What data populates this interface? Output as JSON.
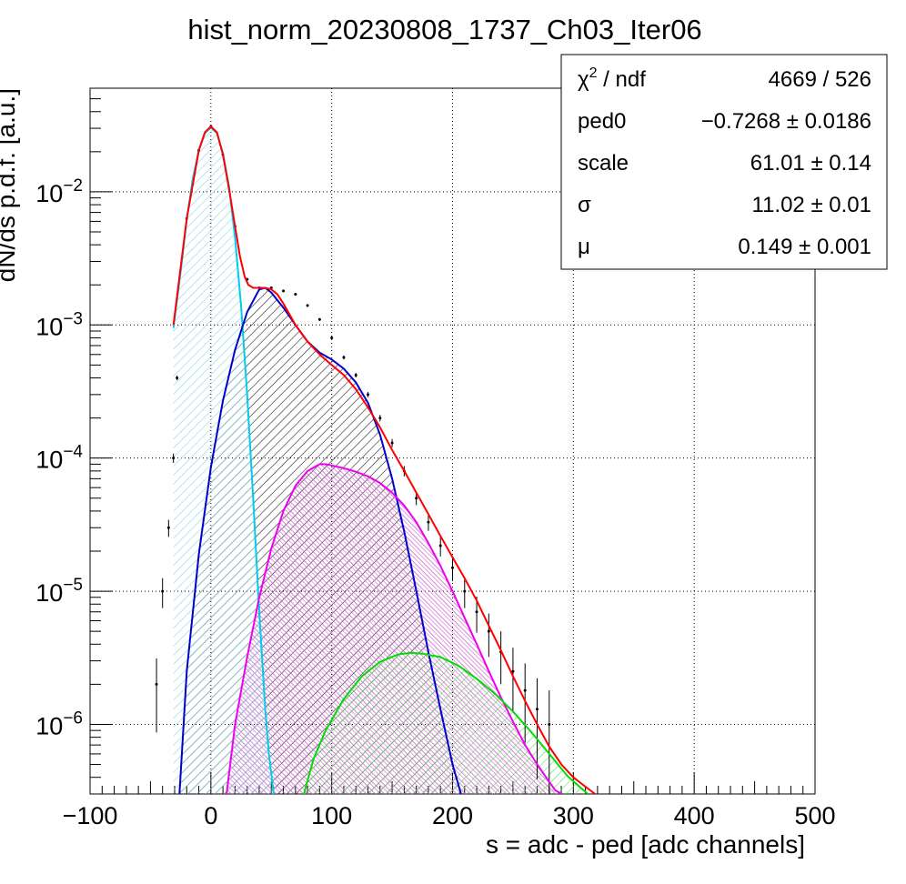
{
  "chart_data": {
    "type": "line",
    "title": "hist_norm_20230808_1737_Ch03_Iter06",
    "xlabel": "s = adc - ped [adc channels]",
    "ylabel": "dN/ds p.d.f. [a.u.]",
    "x_scale": "linear",
    "y_scale": "log",
    "xlim": [
      -100,
      500
    ],
    "ylim": [
      3e-07,
      0.06
    ],
    "grid": true,
    "x_ticks": [
      -100,
      0,
      100,
      200,
      300,
      400,
      500
    ],
    "x_tick_labels": [
      "−100",
      "0",
      "100",
      "200",
      "300",
      "400",
      "500"
    ],
    "y_ticks": [
      1e-06,
      1e-05,
      0.0001,
      0.001,
      0.01
    ],
    "y_tick_labels": [
      {
        "base": "10",
        "exp": "−6"
      },
      {
        "base": "10",
        "exp": "−5"
      },
      {
        "base": "10",
        "exp": "−4"
      },
      {
        "base": "10",
        "exp": "−3"
      },
      {
        "base": "10",
        "exp": "−2"
      }
    ],
    "series": [
      {
        "color": "#ff0000",
        "x": [
          -31,
          -20,
          -10,
          -5,
          0,
          5,
          10,
          15,
          20,
          24,
          28,
          31,
          35,
          40,
          45,
          50,
          55,
          60,
          70,
          80,
          90,
          100,
          110,
          120,
          130,
          140,
          150,
          160,
          170,
          180,
          190,
          200,
          210,
          220,
          230,
          240,
          250,
          260,
          270,
          280,
          290,
          300,
          310,
          318
        ],
        "y": [
          0.001,
          0.0063,
          0.0205,
          0.028,
          0.031,
          0.028,
          0.019,
          0.0105,
          0.0055,
          0.0033,
          0.0023,
          0.002,
          0.0019,
          0.0019,
          0.0019,
          0.00185,
          0.0017,
          0.00145,
          0.001,
          0.00075,
          0.0006,
          0.0005,
          0.00042,
          0.00033,
          0.00024,
          0.00017,
          0.000115,
          8e-05,
          5.5e-05,
          3.8e-05,
          2.6e-05,
          1.8e-05,
          1.25e-05,
          8.5e-06,
          5.5e-06,
          3.6e-06,
          2.3e-06,
          1.5e-06,
          1e-06,
          6.8e-07,
          5e-07,
          4e-07,
          3.4e-07,
          3e-07
        ]
      },
      {
        "color": "#00ccee",
        "fill": "#7fd8e8",
        "x": [
          -31,
          -25,
          -20,
          -15,
          -10,
          -5,
          0,
          5,
          10,
          15,
          20,
          25,
          30,
          35,
          40,
          45,
          48,
          52
        ],
        "y": [
          0.00095,
          0.0025,
          0.0062,
          0.0125,
          0.0205,
          0.0275,
          0.0305,
          0.0275,
          0.0195,
          0.011,
          0.0045,
          0.0014,
          0.0003,
          5e-05,
          7e-06,
          1.3e-06,
          6e-07,
          3e-07
        ]
      },
      {
        "color": "#0000cc",
        "fill": "#222222",
        "x": [
          -26,
          -20,
          -10,
          0,
          10,
          20,
          30,
          40,
          45,
          50,
          60,
          70,
          80,
          90,
          100,
          110,
          120,
          130,
          140,
          150,
          160,
          170,
          180,
          190,
          200,
          207
        ],
        "y": [
          3e-07,
          2.5e-06,
          1.9e-05,
          8.5e-05,
          0.00027,
          0.00065,
          0.00125,
          0.00185,
          0.0019,
          0.00175,
          0.00135,
          0.001,
          0.00075,
          0.00062,
          0.00055,
          0.00047,
          0.00037,
          0.00026,
          0.00015,
          7e-05,
          2.8e-05,
          1e-05,
          3.5e-06,
          1.3e-06,
          5e-07,
          3e-07
        ]
      },
      {
        "color": "#ee00ee",
        "fill": "#cc66cc",
        "x": [
          13,
          20,
          30,
          40,
          50,
          60,
          70,
          80,
          90,
          95,
          100,
          110,
          120,
          130,
          140,
          150,
          160,
          170,
          180,
          190,
          200,
          210,
          220,
          230,
          240,
          250,
          260,
          270,
          280,
          285,
          290
        ],
        "y": [
          3e-07,
          1e-06,
          3.2e-06,
          9e-06,
          2.1e-05,
          4e-05,
          6.2e-05,
          8e-05,
          9e-05,
          9e-05,
          8.8e-05,
          8.4e-05,
          7.9e-05,
          7.3e-05,
          6.5e-05,
          5.5e-05,
          4.4e-05,
          3.3e-05,
          2.3e-05,
          1.55e-05,
          1e-05,
          6.3e-06,
          4e-06,
          2.5e-06,
          1.6e-06,
          1.05e-06,
          7e-07,
          5e-07,
          3.7e-07,
          3.2e-07,
          3e-07
        ]
      },
      {
        "color": "#00dd00",
        "fill": "#55dd55",
        "x": [
          77,
          85,
          95,
          110,
          125,
          140,
          155,
          165,
          175,
          190,
          205,
          220,
          235,
          250,
          265,
          280,
          295,
          305,
          312
        ],
        "y": [
          3e-07,
          5.5e-07,
          9e-07,
          1.55e-06,
          2.3e-06,
          2.95e-06,
          3.35e-06,
          3.45e-06,
          3.4e-06,
          3.2e-06,
          2.75e-06,
          2.2e-06,
          1.7e-06,
          1.25e-06,
          8.8e-07,
          6e-07,
          4.1e-07,
          3.4e-07,
          3e-07
        ]
      },
      {
        "color": "#000000",
        "style": "histogram",
        "x": [
          -45,
          -40,
          -35,
          -31,
          -28,
          -20,
          -10,
          0,
          10,
          20,
          30,
          40,
          50,
          60,
          70,
          80,
          90,
          100,
          110,
          120,
          130,
          140,
          150,
          160,
          170,
          180,
          190,
          200,
          210,
          220,
          230,
          240,
          250,
          260,
          270,
          280
        ],
        "y": [
          2e-06,
          1e-05,
          3e-05,
          0.0001,
          0.0004,
          0.0063,
          0.0205,
          0.031,
          0.019,
          0.0055,
          0.0022,
          0.0019,
          0.0019,
          0.0018,
          0.0017,
          0.0014,
          0.0011,
          0.0008,
          0.00057,
          0.00042,
          0.0003,
          0.0002,
          0.00013,
          8e-05,
          5e-05,
          3.3e-05,
          2.2e-05,
          1.5e-05,
          1e-05,
          7e-06,
          5e-06,
          3.5e-06,
          2.5e-06,
          1.8e-06,
          1.3e-06,
          1e-06
        ]
      }
    ],
    "legend": {
      "placement": "top-right",
      "rows": [
        {
          "label": "χ",
          "sup": "2",
          "label_rest": " / ndf",
          "value": "4669 / 526"
        },
        {
          "label": "ped0",
          "value": "−0.7268 ± 0.0186"
        },
        {
          "label": "scale",
          "value": "61.01 ± 0.14"
        },
        {
          "label": "σ",
          "value": "11.02 ± 0.01"
        },
        {
          "label": "μ",
          "value": "0.149 ± 0.001"
        }
      ]
    }
  }
}
